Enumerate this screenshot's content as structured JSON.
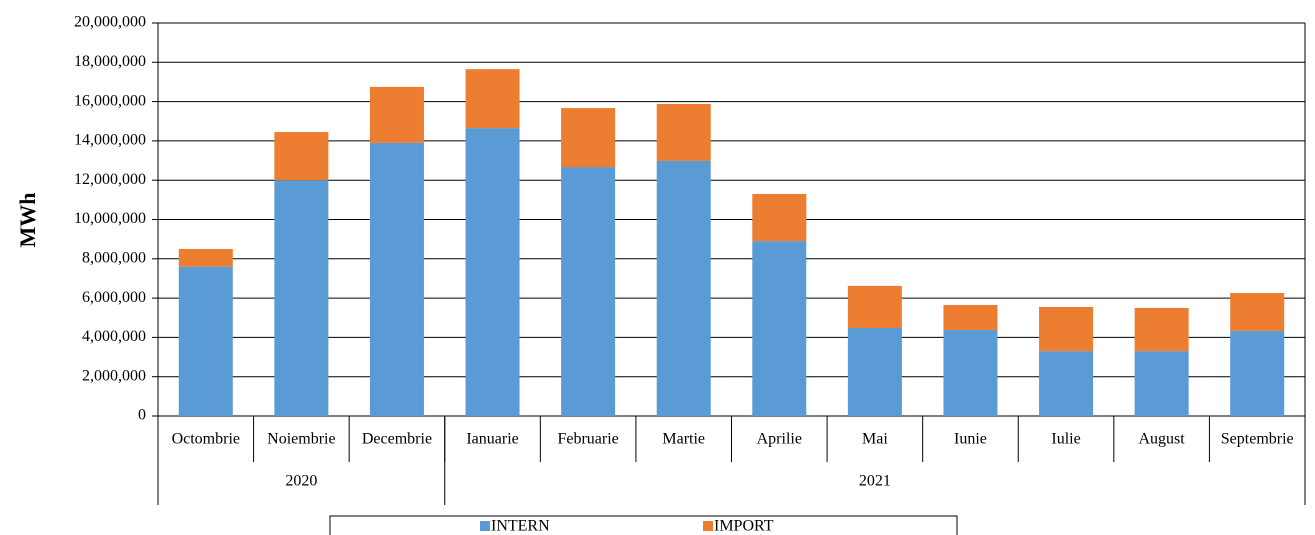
{
  "chart_data": {
    "type": "stacked_bar",
    "y_label": "MWh",
    "categories": [
      "Octombrie",
      "Noiembrie",
      "Decembrie",
      "Ianuarie",
      "Februarie",
      "Martie",
      "Aprilie",
      "Mai",
      "Iunie",
      "Iulie",
      "August",
      "Septembrie"
    ],
    "groups": [
      {
        "name": "2020",
        "span": 3
      },
      {
        "name": "2021",
        "span": 9
      }
    ],
    "series": [
      {
        "name": "INTERN",
        "color": "#5b9bd5",
        "values": [
          7600000,
          12000000,
          13900000,
          14650000,
          12670000,
          12980000,
          8900000,
          4480000,
          4380000,
          3300000,
          3300000,
          4330000
        ]
      },
      {
        "name": "IMPORT",
        "color": "#ed7d31",
        "values": [
          900000,
          2450000,
          2850000,
          3000000,
          3000000,
          2900000,
          2400000,
          2140000,
          1270000,
          2250000,
          2200000,
          1930000
        ]
      }
    ],
    "ylim": [
      0,
      20000000
    ],
    "yticks": [
      0,
      {
        "value": 2000000,
        "label": "2,000,000"
      },
      {
        "value": 4000000,
        "label": "4,000,000"
      },
      {
        "value": 6000000,
        "label": "6,000,000"
      },
      {
        "value": 8000000,
        "label": "8,000,000"
      },
      {
        "value": 10000000,
        "label": "10,000,000"
      },
      {
        "value": 12000000,
        "label": "12,000,000"
      },
      {
        "value": 14000000,
        "label": "14,000,000"
      },
      {
        "value": 16000000,
        "label": "16,000,000"
      },
      {
        "value": 18000000,
        "label": "18,000,000"
      },
      {
        "value": 20000000,
        "label": "20,000,000"
      }
    ],
    "grid": true,
    "legend": "bottom"
  }
}
